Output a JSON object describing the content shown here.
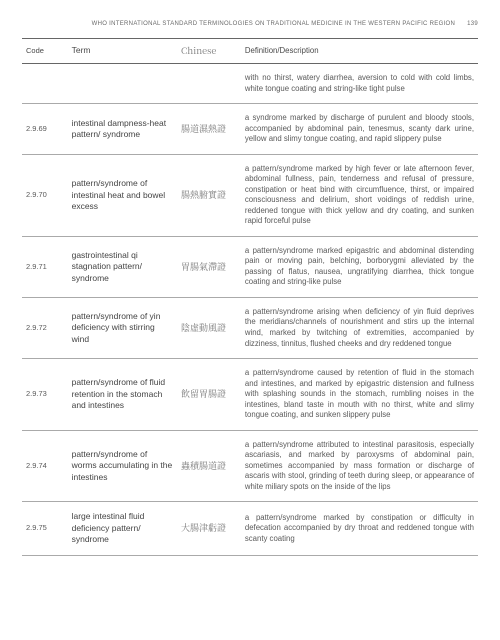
{
  "header": {
    "title": "WHO INTERNATIONAL STANDARD TERMINOLOGIES ON TRADITIONAL MEDICINE IN THE WESTERN PACIFIC REGION",
    "page_number": "139"
  },
  "columns": {
    "code": "Code",
    "term": "Term",
    "chinese": "Chinese",
    "definition": "Definition/Description"
  },
  "rows": [
    {
      "code": "",
      "term": "",
      "chinese": "",
      "definition": "with no thirst, watery diarrhea, aversion to cold with cold limbs, white tongue coating and string-like tight pulse"
    },
    {
      "code": "2.9.69",
      "term": "intestinal dampness-heat pattern/ syndrome",
      "chinese": "腸道濕熱證",
      "definition": "a syndrome marked by discharge of purulent and bloody stools, accompanied by abdominal pain, tenesmus, scanty dark urine, yellow and slimy tongue coating, and rapid slippery pulse"
    },
    {
      "code": "2.9.70",
      "term": "pattern/syndrome of intestinal heat and bowel excess",
      "chinese": "腸熱腑實證",
      "definition": "a pattern/syndrome marked by high fever or late afternoon fever, abdominal fullness, pain, tenderness and refusal of pressure, constipation or heat bind with circumfluence, thirst, or impaired consciousness and delirium, short voidings of reddish urine, reddened tongue with thick yellow and dry coating, and sunken rapid forceful pulse"
    },
    {
      "code": "2.9.71",
      "term": "gastrointestinal qi stagnation pattern/ syndrome",
      "chinese": "胃腸氣滯證",
      "definition": "a pattern/syndrome marked epigastric and abdominal distending pain or moving pain, belching, borborygmi alleviated by the passing of flatus, nausea, ungratifying diarrhea, thick tongue coating and string-like pulse"
    },
    {
      "code": "2.9.72",
      "term": "pattern/syndrome of yin deficiency with stirring wind",
      "chinese": "陰虛動風證",
      "definition": "a pattern/syndrome arising when deficiency of yin fluid deprives the meridians/channels of nourishment and stirs up the internal wind, marked by twitching of extremities, accompanied by dizziness, tinnitus, flushed cheeks and dry reddened tongue"
    },
    {
      "code": "2.9.73",
      "term": "pattern/syndrome of fluid retention in the stomach and intestines",
      "chinese": "飲留胃腸證",
      "definition": "a pattern/syndrome caused by retention of fluid in the stomach and intestines, and marked by epigastric distension and fullness with splashing sounds in the stomach, rumbling noises in the intestines, bland taste in mouth with no thirst, white and slimy tongue coating, and sunken slippery pulse"
    },
    {
      "code": "2.9.74",
      "term": "pattern/syndrome of worms accumulating in the intestines",
      "chinese": "蟲積腸道證",
      "definition": "a pattern/syndrome attributed to intestinal parasitosis, especially ascariasis, and marked by paroxysms of abdominal pain, sometimes accompanied by mass formation or discharge of ascaris with stool, grinding of teeth during sleep, or appearance of white miliary spots on the inside of the lips"
    },
    {
      "code": "2.9.75",
      "term": "large intestinal fluid deficiency pattern/ syndrome",
      "chinese": "大腸津虧證",
      "definition": "a pattern/syndrome marked by constipation or difficulty in defecation accompanied by dry throat and reddened tongue with scanty coating"
    }
  ]
}
